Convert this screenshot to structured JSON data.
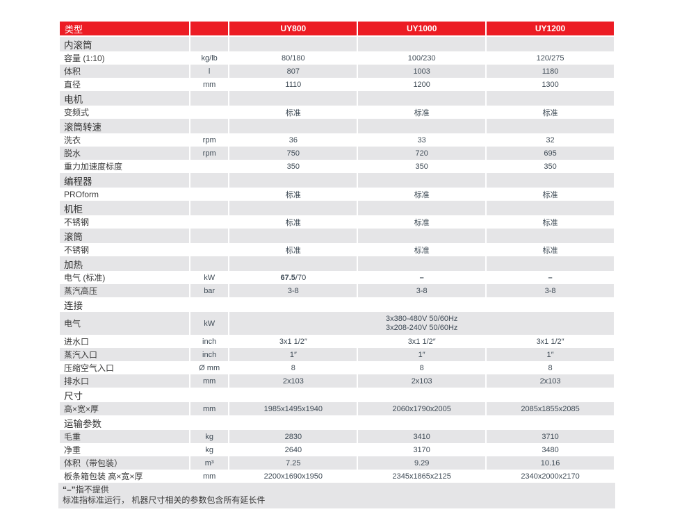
{
  "colors": {
    "accent_red": "#ec1c24",
    "row_gray": "#e5e5e7",
    "value_text": "#3e4a55",
    "label_text": "#3a3a3a"
  },
  "table": {
    "header": {
      "type_label": "类型",
      "unit_label": "",
      "models": [
        "UY800",
        "UY1000",
        "UY1200"
      ]
    },
    "rows": [
      {
        "type": "section",
        "label": "内滚筒"
      },
      {
        "type": "data",
        "label": "容量 (1:10)",
        "unit": "kg/lb",
        "values": [
          "80/180",
          "100/230",
          "120/275"
        ]
      },
      {
        "type": "data",
        "label": "体积",
        "unit": "l",
        "values": [
          "807",
          "1003",
          "1180"
        ]
      },
      {
        "type": "data",
        "label": "直径",
        "unit": "mm",
        "values": [
          "1110",
          "1200",
          "1300"
        ]
      },
      {
        "type": "section",
        "label": "电机"
      },
      {
        "type": "data",
        "label": "变频式",
        "unit": "",
        "values": [
          "标准",
          "标准",
          "标准"
        ]
      },
      {
        "type": "section",
        "label": "滚筒转速"
      },
      {
        "type": "data",
        "label": "洗衣",
        "unit": "rpm",
        "values": [
          "36",
          "33",
          "32"
        ]
      },
      {
        "type": "data",
        "label": "脱水",
        "unit": "rpm",
        "values": [
          "750",
          "720",
          "695"
        ]
      },
      {
        "type": "data",
        "label": "重力加速度标度",
        "unit": "",
        "values": [
          "350",
          "350",
          "350"
        ]
      },
      {
        "type": "section",
        "label": "编程器"
      },
      {
        "type": "data",
        "label": "PROform",
        "unit": "",
        "values": [
          "标准",
          "标准",
          "标准"
        ]
      },
      {
        "type": "section",
        "label": "机柜"
      },
      {
        "type": "data",
        "label": "不锈钢",
        "unit": "",
        "values": [
          "标准",
          "标准",
          "标准"
        ]
      },
      {
        "type": "section",
        "label": "滚筒"
      },
      {
        "type": "data",
        "label": "不锈钢",
        "unit": "",
        "values": [
          "标准",
          "标准",
          "标准"
        ]
      },
      {
        "type": "section",
        "label": "加热"
      },
      {
        "type": "data",
        "label": "电气 (标准)",
        "unit": "kW",
        "values": [
          {
            "bold": "67.5",
            "text": "/70"
          },
          {
            "bold": "–"
          },
          {
            "bold": "–"
          }
        ]
      },
      {
        "type": "data",
        "label": "蒸汽高压",
        "unit": "bar",
        "values": [
          "3-8",
          "3-8",
          "3-8"
        ]
      },
      {
        "type": "section",
        "label": "连接"
      },
      {
        "type": "data",
        "label": "电气",
        "unit": "kW",
        "span_lines": [
          "3x380-480V 50/60Hz",
          "3x208-240V 50/60Hz"
        ]
      },
      {
        "type": "data",
        "label": "进水口",
        "unit": "inch",
        "values": [
          "3x1 1/2″",
          "3x1 1/2″",
          "3x1 1/2″"
        ]
      },
      {
        "type": "data",
        "label": "蒸汽入口",
        "unit": "inch",
        "values": [
          "1″",
          "1″",
          "1″"
        ]
      },
      {
        "type": "data",
        "label": "压缩空气入口",
        "unit": "Ø mm",
        "values": [
          "8",
          "8",
          "8"
        ]
      },
      {
        "type": "data",
        "label": "排水口",
        "unit": "mm",
        "values": [
          "2x103",
          "2x103",
          "2x103"
        ]
      },
      {
        "type": "section",
        "label": "尺寸"
      },
      {
        "type": "data",
        "label": "高×宽×厚",
        "unit": "mm",
        "values": [
          "1985x1495x1940",
          "2060x1790x2005",
          "2085x1855x2085"
        ]
      },
      {
        "type": "section",
        "label": "运输参数"
      },
      {
        "type": "data",
        "label": "毛重",
        "unit": "kg",
        "values": [
          "2830",
          "3410",
          "3710"
        ]
      },
      {
        "type": "data",
        "label": "净重",
        "unit": "kg",
        "values": [
          "2640",
          "3170",
          "3480"
        ]
      },
      {
        "type": "data",
        "label": "体积（带包装）",
        "unit": "m³",
        "values": [
          "7.25",
          "9.29",
          "10.16"
        ]
      },
      {
        "type": "data",
        "label": "板条箱包装 高×宽×厚",
        "unit": "mm",
        "values": [
          "2200x1690x1950",
          "2345x1865x2125",
          "2340x2000x2170"
        ]
      }
    ],
    "footnotes": [
      {
        "bold": "“–”",
        "text": "指不提供"
      },
      {
        "text": "标准指标准运行， 机器尺寸相关的参数包含所有延长件"
      }
    ]
  }
}
